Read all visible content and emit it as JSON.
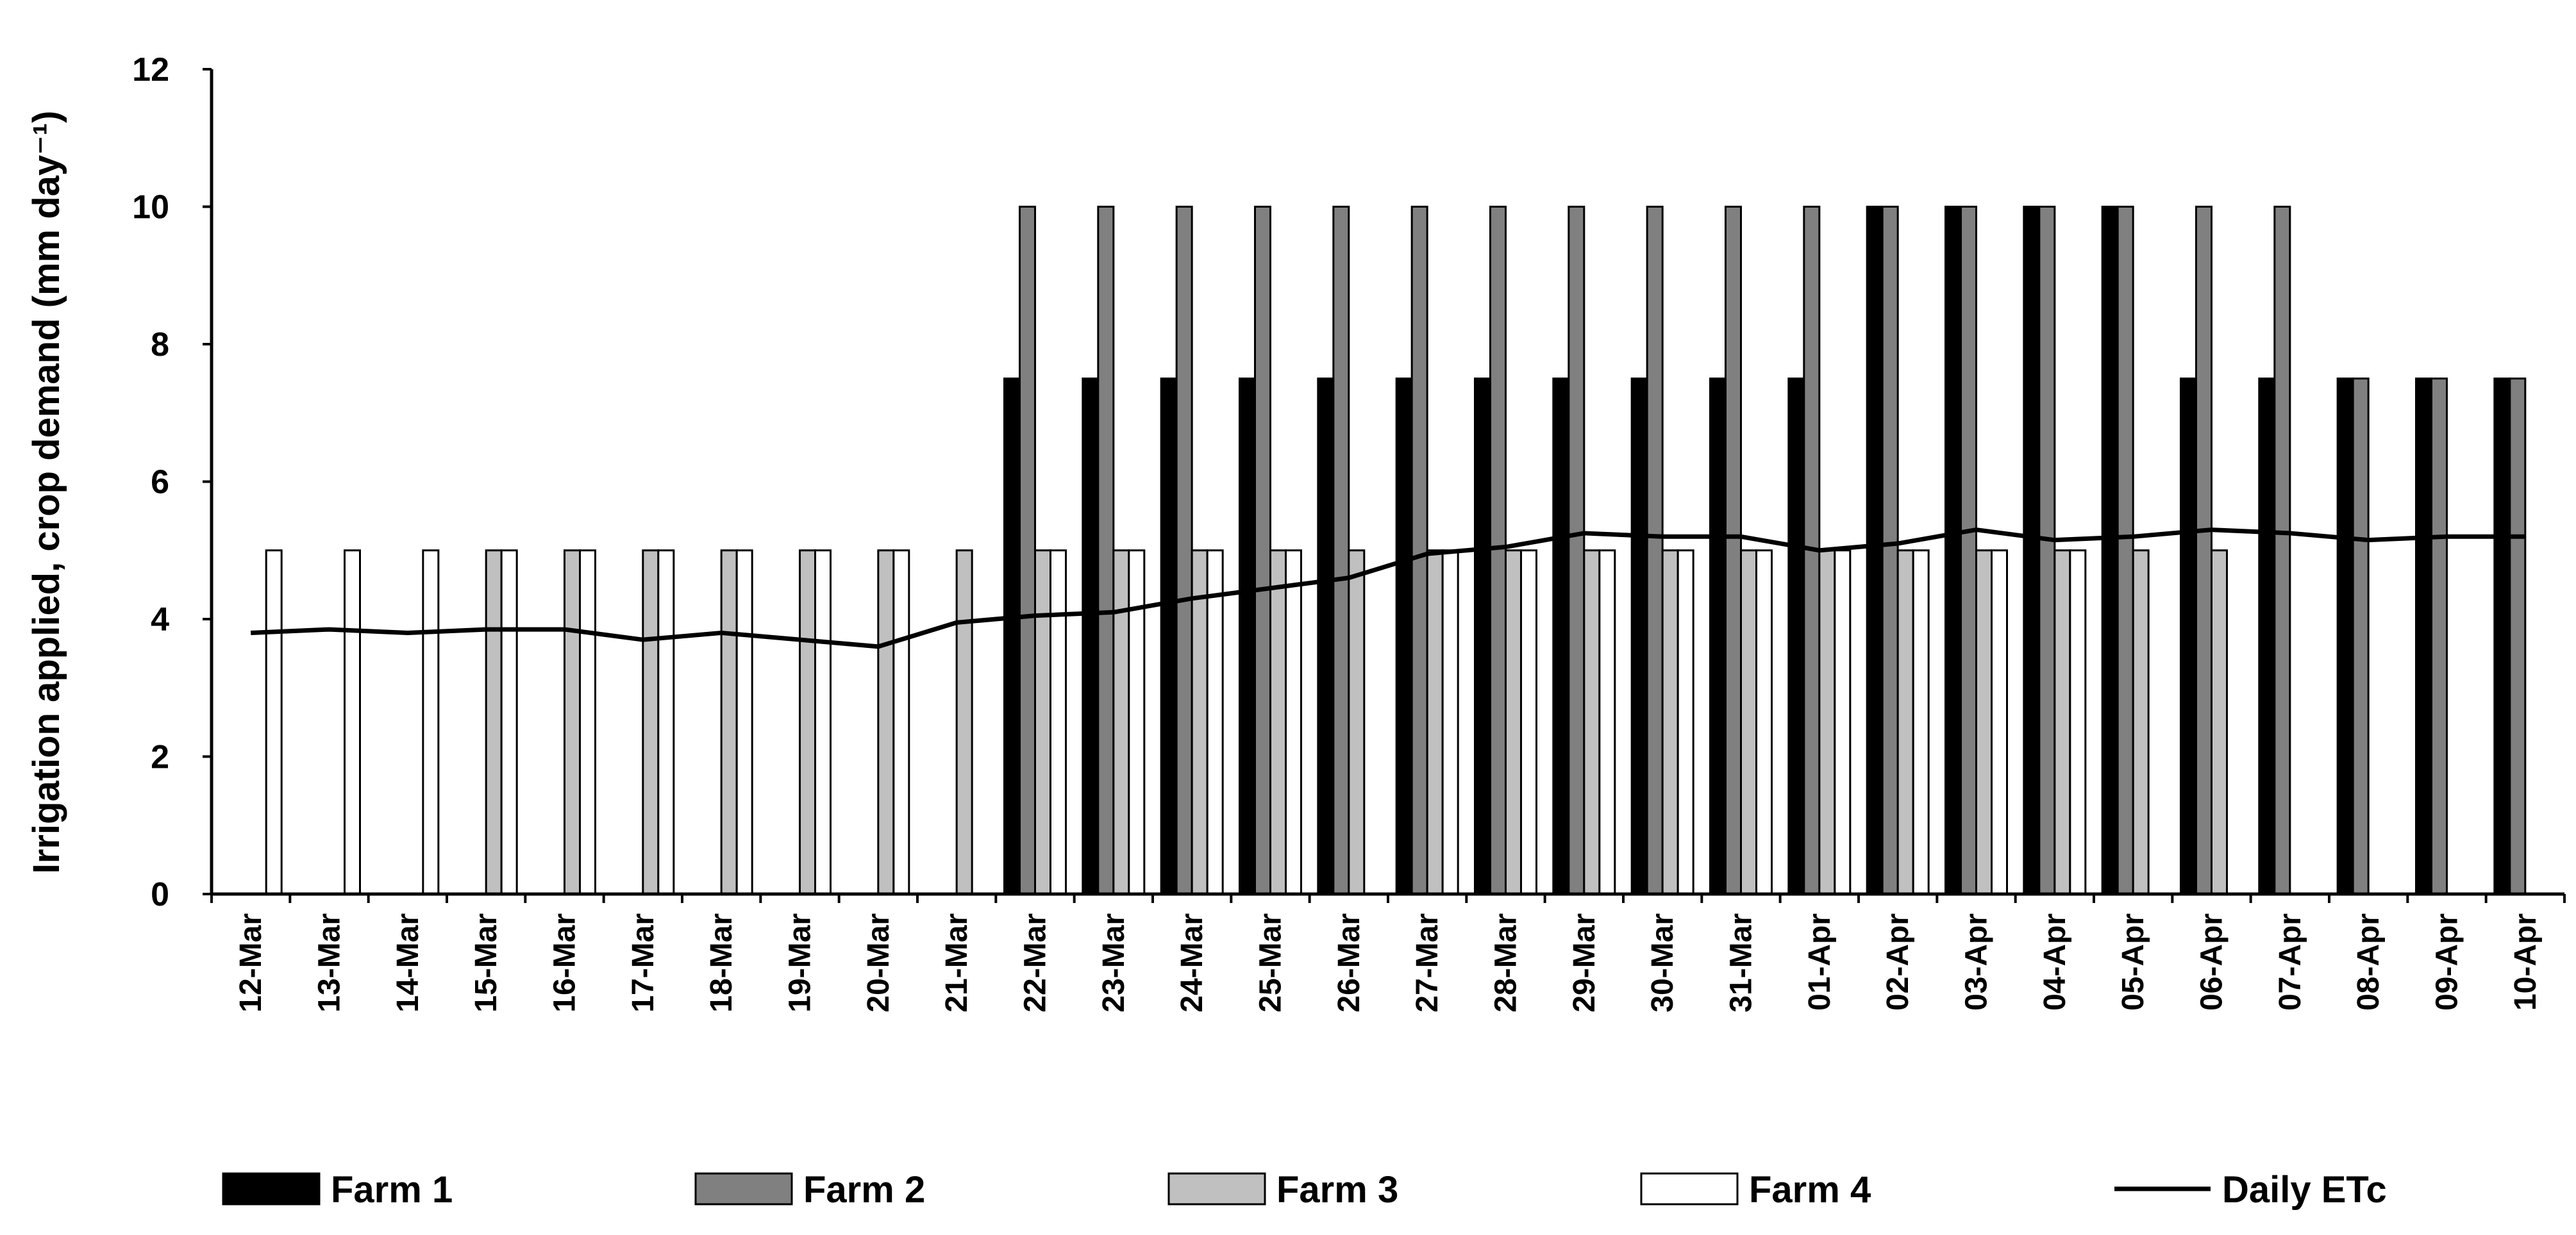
{
  "chart_data": {
    "type": "bar",
    "title": "",
    "xlabel": "",
    "ylabel": "Irrigation applied, crop demand (mm day⁻¹)",
    "ylim": [
      0,
      12
    ],
    "yticks": [
      "0",
      "2",
      "4",
      "6",
      "8",
      "10",
      "12"
    ],
    "grid": false,
    "legend_position": "bottom",
    "categories": [
      "12-Mar",
      "13-Mar",
      "14-Mar",
      "15-Mar",
      "16-Mar",
      "17-Mar",
      "18-Mar",
      "19-Mar",
      "20-Mar",
      "21-Mar",
      "22-Mar",
      "23-Mar",
      "24-Mar",
      "25-Mar",
      "26-Mar",
      "27-Mar",
      "28-Mar",
      "29-Mar",
      "30-Mar",
      "31-Mar",
      "01-Apr",
      "02-Apr",
      "03-Apr",
      "04-Apr",
      "05-Apr",
      "06-Apr",
      "07-Apr",
      "08-Apr",
      "09-Apr",
      "10-Apr"
    ],
    "series": [
      {
        "name": "Farm 1",
        "type": "bar",
        "color": "#000000",
        "values": [
          0,
          0,
          0,
          0,
          0,
          0,
          0,
          0,
          0,
          0,
          7.5,
          7.5,
          7.5,
          7.5,
          7.5,
          7.5,
          7.5,
          7.5,
          7.5,
          7.5,
          7.5,
          10,
          10,
          10,
          10,
          7.5,
          7.5,
          7.5,
          7.5,
          7.5
        ]
      },
      {
        "name": "Farm 2",
        "type": "bar",
        "color": "#808080",
        "values": [
          0,
          0,
          0,
          0,
          0,
          0,
          0,
          0,
          0,
          0,
          10,
          10,
          10,
          10,
          10,
          10,
          10,
          10,
          10,
          10,
          10,
          10,
          10,
          10,
          10,
          10,
          10,
          7.5,
          7.5,
          7.5
        ]
      },
      {
        "name": "Farm 3",
        "type": "bar",
        "color": "#c0c0c0",
        "values": [
          0,
          0,
          0,
          5,
          5,
          5,
          5,
          5,
          5,
          5,
          5,
          5,
          5,
          5,
          5,
          5,
          5,
          5,
          5,
          5,
          5,
          5,
          5,
          5,
          5,
          5,
          0,
          0,
          0,
          0
        ]
      },
      {
        "name": "Farm 4",
        "type": "bar",
        "color": "#ffffff",
        "values": [
          5,
          5,
          5,
          5,
          5,
          5,
          5,
          5,
          5,
          0,
          5,
          5,
          5,
          5,
          0,
          5,
          5,
          5,
          5,
          5,
          5,
          5,
          5,
          5,
          0,
          0,
          0,
          0,
          0,
          0
        ]
      },
      {
        "name": "Daily ETc",
        "type": "line",
        "color": "#000000",
        "values": [
          3.8,
          3.85,
          3.8,
          3.85,
          3.85,
          3.7,
          3.8,
          3.7,
          3.6,
          3.95,
          4.05,
          4.1,
          4.3,
          4.45,
          4.6,
          4.95,
          5.05,
          5.25,
          5.2,
          5.2,
          5.0,
          5.1,
          5.3,
          5.15,
          5.2,
          5.3,
          5.25,
          5.15,
          5.2,
          5.2
        ]
      }
    ]
  }
}
